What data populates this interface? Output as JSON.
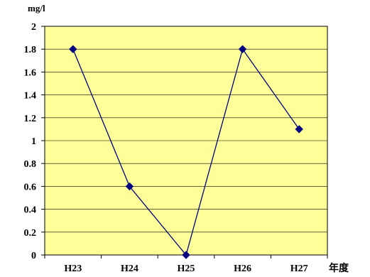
{
  "chart_data": {
    "type": "line",
    "categories": [
      "H23",
      "H24",
      "H25",
      "H26",
      "H27"
    ],
    "series": [
      {
        "values": [
          1.8,
          0.6,
          0.0,
          1.8,
          1.1
        ]
      }
    ],
    "ylabel": "mg/l",
    "xlabel": "年度",
    "ylim": [
      0,
      2
    ],
    "yticks": [
      "0",
      "0.2",
      "0.4",
      "0.6",
      "0.8",
      "1",
      "1.2",
      "1.4",
      "1.6",
      "1.8",
      "2"
    ],
    "grid": true,
    "colors": {
      "plot_background": "#FFFF99",
      "line": "#000080",
      "marker": "#000080",
      "gridline": "#000000"
    }
  }
}
